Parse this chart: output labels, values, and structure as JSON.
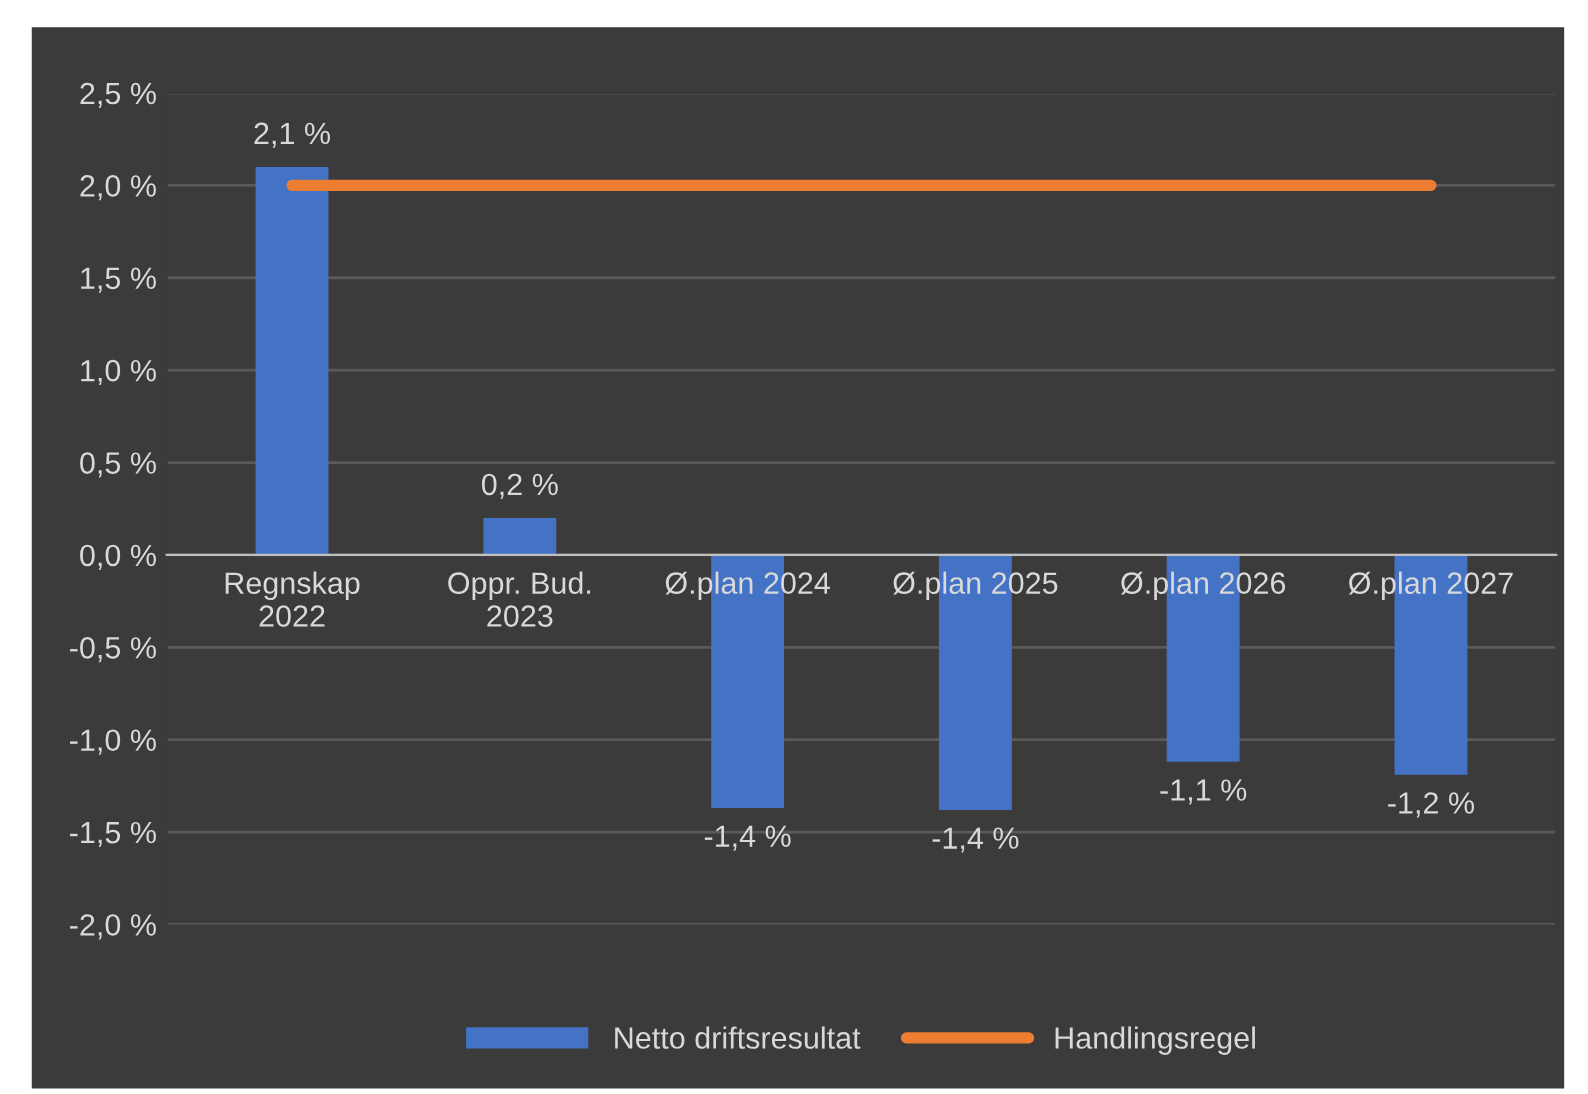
{
  "chart_data": {
    "type": "bar",
    "categories": [
      "Regnskap\n2022",
      "Oppr. Bud.\n2023",
      "Ø.plan 2024",
      "Ø.plan 2025",
      "Ø.plan 2026",
      "Ø.plan 2027"
    ],
    "series": [
      {
        "name": "Netto driftsresultat",
        "color": "#4472c4",
        "values": [
          2.1,
          0.2,
          -1.37,
          -1.38,
          -1.12,
          -1.19
        ],
        "value_labels": [
          "2,1 %",
          "0,2 %",
          "-1,4 %",
          "-1,4 %",
          "-1,1 %",
          "-1,2 %"
        ]
      },
      {
        "name": "Handlingsregel",
        "type": "line",
        "color": "#ed7d31",
        "values": [
          2.0,
          2.0,
          2.0,
          2.0,
          2.0,
          2.0
        ]
      }
    ],
    "ylim": [
      -2.0,
      2.5
    ],
    "yticks": [
      {
        "value": -2.0,
        "label": "-2,0 %"
      },
      {
        "value": -1.5,
        "label": "-1,5 %"
      },
      {
        "value": -1.0,
        "label": "-1,0 %"
      },
      {
        "value": -0.5,
        "label": "-0,5 %"
      },
      {
        "value": 0.0,
        "label": "0,0 %"
      },
      {
        "value": 0.5,
        "label": "0,5 %"
      },
      {
        "value": 1.0,
        "label": "1,0 %"
      },
      {
        "value": 1.5,
        "label": "1,5 %"
      },
      {
        "value": 2.0,
        "label": "2,0 %"
      },
      {
        "value": 2.5,
        "label": "2,5 %"
      }
    ],
    "grid": "y",
    "legend": "bottom",
    "marker": "none",
    "line_style": "solid"
  }
}
